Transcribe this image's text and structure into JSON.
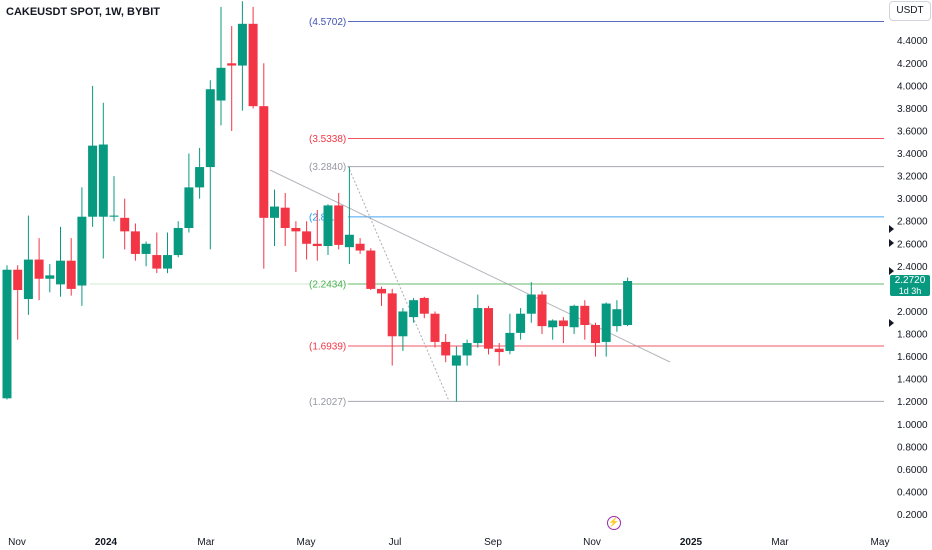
{
  "header": {
    "title": "CAKEUSDT SPOT, 1W, BYBIT",
    "currency": "USDT"
  },
  "price_tag": {
    "price": "2.2720",
    "countdown": "1d 3h"
  },
  "chart_data": {
    "type": "candlestick",
    "symbol": "CAKEUSDT",
    "interval": "1W",
    "exchange": "BYBIT",
    "ylim": [
      0.1,
      4.75
    ],
    "y_ticks": [
      "4.4000",
      "4.2000",
      "4.0000",
      "3.8000",
      "3.6000",
      "3.4000",
      "3.2000",
      "3.0000",
      "2.8000",
      "2.6000",
      "2.4000",
      "2.2000",
      "2.0000",
      "1.8000",
      "1.6000",
      "1.4000",
      "1.2000",
      "1.0000",
      "0.8000",
      "0.6000",
      "0.4000",
      "0.2000"
    ],
    "x_labels": [
      {
        "label": "Nov",
        "bold": false
      },
      {
        "label": "2024",
        "bold": true
      },
      {
        "label": "Mar",
        "bold": false
      },
      {
        "label": "May",
        "bold": false
      },
      {
        "label": "Jul",
        "bold": false
      },
      {
        "label": "Sep",
        "bold": false
      },
      {
        "label": "Nov",
        "bold": false
      },
      {
        "label": "2025",
        "bold": true
      },
      {
        "label": "Mar",
        "bold": false
      },
      {
        "label": "May",
        "bold": false
      }
    ],
    "candles": [
      {
        "o": 1.23,
        "h": 2.41,
        "l": 1.22,
        "c": 2.37
      },
      {
        "o": 2.37,
        "h": 2.41,
        "l": 1.75,
        "c": 2.19
      },
      {
        "o": 2.11,
        "h": 2.85,
        "l": 1.97,
        "c": 2.46
      },
      {
        "o": 2.46,
        "h": 2.65,
        "l": 2.1,
        "c": 2.29
      },
      {
        "o": 2.29,
        "h": 2.42,
        "l": 2.17,
        "c": 2.32
      },
      {
        "o": 2.24,
        "h": 2.75,
        "l": 2.13,
        "c": 2.45
      },
      {
        "o": 2.45,
        "h": 2.65,
        "l": 2.14,
        "c": 2.2
      },
      {
        "o": 2.23,
        "h": 3.1,
        "l": 2.05,
        "c": 2.84
      },
      {
        "o": 2.84,
        "h": 4.0,
        "l": 2.75,
        "c": 3.47
      },
      {
        "o": 2.84,
        "h": 3.85,
        "l": 2.47,
        "c": 3.48
      },
      {
        "o": 2.84,
        "h": 3.2,
        "l": 2.8,
        "c": 2.85
      },
      {
        "o": 2.83,
        "h": 3.0,
        "l": 2.55,
        "c": 2.71
      },
      {
        "o": 2.71,
        "h": 2.78,
        "l": 2.45,
        "c": 2.51
      },
      {
        "o": 2.51,
        "h": 2.62,
        "l": 2.4,
        "c": 2.6
      },
      {
        "o": 2.5,
        "h": 2.7,
        "l": 2.34,
        "c": 2.38
      },
      {
        "o": 2.38,
        "h": 2.7,
        "l": 2.34,
        "c": 2.5
      },
      {
        "o": 2.5,
        "h": 2.8,
        "l": 2.48,
        "c": 2.74
      },
      {
        "o": 2.74,
        "h": 3.4,
        "l": 2.7,
        "c": 3.1
      },
      {
        "o": 3.1,
        "h": 3.45,
        "l": 3.0,
        "c": 3.28
      },
      {
        "o": 3.28,
        "h": 4.05,
        "l": 2.55,
        "c": 3.97
      },
      {
        "o": 3.87,
        "h": 4.7,
        "l": 3.65,
        "c": 4.16
      },
      {
        "o": 4.2,
        "h": 4.53,
        "l": 3.6,
        "c": 4.18
      },
      {
        "o": 4.18,
        "h": 4.75,
        "l": 3.78,
        "c": 4.55
      },
      {
        "o": 4.55,
        "h": 4.7,
        "l": 3.8,
        "c": 3.82
      },
      {
        "o": 3.82,
        "h": 4.2,
        "l": 2.38,
        "c": 2.83
      },
      {
        "o": 2.83,
        "h": 3.08,
        "l": 2.58,
        "c": 2.93
      },
      {
        "o": 2.92,
        "h": 3.05,
        "l": 2.58,
        "c": 2.74
      },
      {
        "o": 2.74,
        "h": 2.8,
        "l": 2.35,
        "c": 2.71
      },
      {
        "o": 2.71,
        "h": 2.8,
        "l": 2.46,
        "c": 2.6
      },
      {
        "o": 2.6,
        "h": 2.9,
        "l": 2.45,
        "c": 2.58
      },
      {
        "o": 2.58,
        "h": 2.95,
        "l": 2.5,
        "c": 2.94
      },
      {
        "o": 2.94,
        "h": 3.05,
        "l": 2.55,
        "c": 2.59
      },
      {
        "o": 2.57,
        "h": 3.28,
        "l": 2.42,
        "c": 2.68
      },
      {
        "o": 2.6,
        "h": 2.65,
        "l": 2.51,
        "c": 2.54
      },
      {
        "o": 2.54,
        "h": 2.56,
        "l": 2.19,
        "c": 2.2
      },
      {
        "o": 2.2,
        "h": 2.22,
        "l": 2.05,
        "c": 2.16
      },
      {
        "o": 2.16,
        "h": 2.2,
        "l": 1.52,
        "c": 1.78
      },
      {
        "o": 1.78,
        "h": 2.03,
        "l": 1.65,
        "c": 2.0
      },
      {
        "o": 1.95,
        "h": 2.12,
        "l": 1.9,
        "c": 2.1
      },
      {
        "o": 2.12,
        "h": 2.13,
        "l": 1.94,
        "c": 1.98
      },
      {
        "o": 1.98,
        "h": 2.0,
        "l": 1.68,
        "c": 1.73
      },
      {
        "o": 1.73,
        "h": 1.8,
        "l": 1.55,
        "c": 1.61
      },
      {
        "o": 1.52,
        "h": 1.69,
        "l": 1.2,
        "c": 1.61
      },
      {
        "o": 1.61,
        "h": 1.75,
        "l": 1.52,
        "c": 1.72
      },
      {
        "o": 1.72,
        "h": 2.15,
        "l": 1.68,
        "c": 2.03
      },
      {
        "o": 2.03,
        "h": 2.05,
        "l": 1.62,
        "c": 1.67
      },
      {
        "o": 1.67,
        "h": 1.72,
        "l": 1.52,
        "c": 1.64
      },
      {
        "o": 1.65,
        "h": 1.98,
        "l": 1.62,
        "c": 1.81
      },
      {
        "o": 1.81,
        "h": 2.03,
        "l": 1.75,
        "c": 1.98
      },
      {
        "o": 1.98,
        "h": 2.26,
        "l": 1.9,
        "c": 2.15
      },
      {
        "o": 2.15,
        "h": 2.18,
        "l": 1.8,
        "c": 1.87
      },
      {
        "o": 1.86,
        "h": 1.93,
        "l": 1.75,
        "c": 1.92
      },
      {
        "o": 1.92,
        "h": 1.95,
        "l": 1.72,
        "c": 1.87
      },
      {
        "o": 1.86,
        "h": 2.06,
        "l": 1.8,
        "c": 2.05
      },
      {
        "o": 2.05,
        "h": 2.1,
        "l": 1.75,
        "c": 1.88
      },
      {
        "o": 1.88,
        "h": 1.9,
        "l": 1.6,
        "c": 1.72
      },
      {
        "o": 1.73,
        "h": 2.08,
        "l": 1.6,
        "c": 2.07
      },
      {
        "o": 1.87,
        "h": 2.1,
        "l": 1.82,
        "c": 2.02
      },
      {
        "o": 1.88,
        "h": 2.3,
        "l": 1.87,
        "c": 2.27
      }
    ],
    "fib_levels": [
      {
        "value": 4.5702,
        "label": "(4.5702)",
        "color": "#3f51b5"
      },
      {
        "value": 3.5338,
        "label": "(3.5338)",
        "color": "#f23645"
      },
      {
        "value": 3.284,
        "label": "(3.2840)",
        "color": "#9598a1"
      },
      {
        "value": 2.838,
        "label": "(2.8...)",
        "color": "#2196f3"
      },
      {
        "value": 2.2434,
        "label": "(2.2434)",
        "color": "#4caf50"
      },
      {
        "value": 1.6939,
        "label": "(1.6939)",
        "color": "#f23645"
      },
      {
        "value": 1.2027,
        "label": "(1.2027)",
        "color": "#9598a1"
      }
    ],
    "current_price": 2.272,
    "colors": {
      "up": "#089981",
      "down": "#f23645",
      "axis_text": "#131722",
      "trendline": "#9598a1"
    }
  }
}
